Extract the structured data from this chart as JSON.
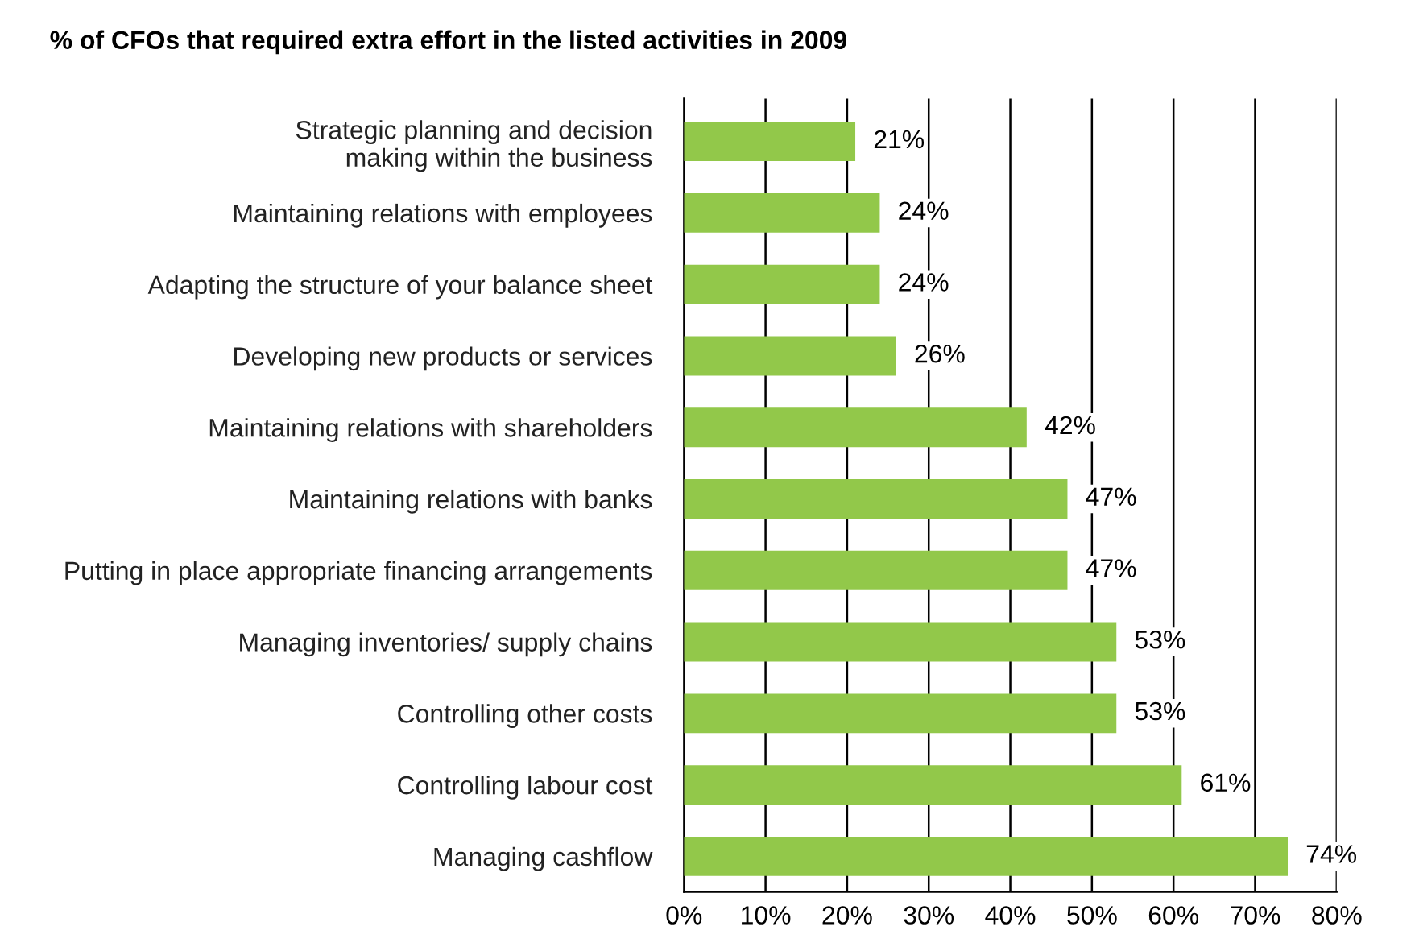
{
  "chart_data": {
    "type": "bar",
    "orientation": "horizontal",
    "title": "% of CFOs that required extra effort in the listed activities in 2009",
    "categories": [
      "Strategic planning and decision\nmaking within the business",
      "Maintaining relations with employees",
      "Adapting the structure of your balance sheet",
      "Developing new products or services",
      "Maintaining relations with shareholders",
      "Maintaining relations with banks",
      "Putting in place appropriate financing arrangements",
      "Managing inventories/ supply chains",
      "Controlling other costs",
      "Controlling labour cost",
      "Managing cashflow"
    ],
    "values": [
      21,
      24,
      24,
      26,
      42,
      47,
      47,
      53,
      53,
      61,
      74
    ],
    "value_labels": [
      "21%",
      "24%",
      "24%",
      "26%",
      "42%",
      "47%",
      "47%",
      "53%",
      "53%",
      "61%",
      "74%"
    ],
    "color": "#92c84a",
    "xlim": [
      0,
      80
    ],
    "xticks": [
      {
        "value": 0,
        "label": "0%"
      },
      {
        "value": 10,
        "label": "10%"
      },
      {
        "value": 20,
        "label": "20%"
      },
      {
        "value": 30,
        "label": "30%"
      },
      {
        "value": 40,
        "label": "40%"
      },
      {
        "value": 50,
        "label": "50%"
      },
      {
        "value": 60,
        "label": "60%"
      },
      {
        "value": 70,
        "label": "70%"
      },
      {
        "value": 80,
        "label": "80%"
      }
    ],
    "grid": "x",
    "legend": false
  }
}
